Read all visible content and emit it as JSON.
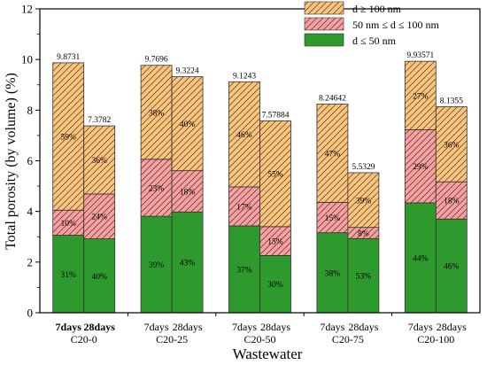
{
  "chart_data": {
    "type": "bar",
    "stacked": true,
    "xlabel": "Wastewater",
    "ylabel": "Total porosity (by volume) (%)",
    "ylim": [
      0,
      12
    ],
    "yticks": [
      "0",
      "2",
      "4",
      "6",
      "8",
      "10",
      "12"
    ],
    "legend_placement": "top-right",
    "groups": [
      "C20-0",
      "C20-25",
      "C20-50",
      "C20-75",
      "C20-100"
    ],
    "ages": [
      "7days",
      "28days"
    ],
    "series": [
      {
        "name": "d ≤ 50 nm",
        "color": "#2e9a2e",
        "hatch": "none"
      },
      {
        "name": "50 nm ≤ d ≤ 100 nm",
        "color": "#f3a2a2",
        "hatch": "diag"
      },
      {
        "name": "d ≥ 100 nm",
        "color": "#f9c47f",
        "hatch": "diag"
      }
    ],
    "bars": [
      {
        "group": "C20-0",
        "age": "7days",
        "total": "9.8731",
        "segments": [
          3.06,
          0.99,
          5.82
        ],
        "labels": [
          "31%",
          "10%",
          "59%"
        ]
      },
      {
        "group": "C20-0",
        "age": "28days",
        "total": "7.3782",
        "segments": [
          2.92,
          1.77,
          2.69
        ],
        "labels": [
          "40%",
          "24%",
          "36%"
        ]
      },
      {
        "group": "C20-25",
        "age": "7days",
        "total": "9.7696",
        "segments": [
          3.81,
          2.25,
          3.71
        ],
        "labels": [
          "39%",
          "23%",
          "38%"
        ]
      },
      {
        "group": "C20-25",
        "age": "28days",
        "total": "9.3224",
        "segments": [
          3.98,
          1.63,
          3.71
        ],
        "labels": [
          "43%",
          "18%",
          "40%"
        ]
      },
      {
        "group": "C20-50",
        "age": "7days",
        "total": "9.1243",
        "segments": [
          3.43,
          1.54,
          4.15
        ],
        "labels": [
          "37%",
          "17%",
          "46%"
        ]
      },
      {
        "group": "C20-50",
        "age": "28days",
        "total": "7.57884",
        "segments": [
          2.26,
          1.14,
          4.18
        ],
        "labels": [
          "30%",
          "15%",
          "55%"
        ]
      },
      {
        "group": "C20-75",
        "age": "7days",
        "total": "8.24642",
        "segments": [
          3.16,
          1.2,
          3.88
        ],
        "labels": [
          "38%",
          "15%",
          "47%"
        ]
      },
      {
        "group": "C20-75",
        "age": "28days",
        "total": "5.5329",
        "segments": [
          2.93,
          0.44,
          2.16
        ],
        "labels": [
          "53%",
          "8%",
          "39%"
        ]
      },
      {
        "group": "C20-100",
        "age": "7days",
        "total": "9.93571",
        "segments": [
          4.34,
          2.89,
          2.7
        ],
        "labels": [
          "44%",
          "29%",
          "27%"
        ]
      },
      {
        "group": "C20-100",
        "age": "28days",
        "total": "8.1355",
        "segments": [
          3.7,
          1.47,
          2.97
        ],
        "labels": [
          "46%",
          "18%",
          "36%"
        ]
      }
    ]
  }
}
